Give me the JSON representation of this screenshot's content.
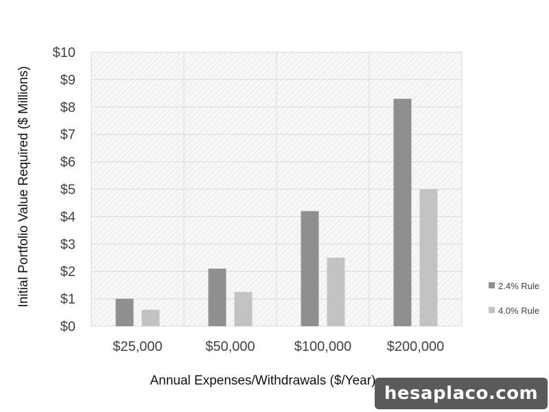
{
  "chart_data": {
    "type": "bar",
    "categories": [
      "$25,000",
      "$50,000",
      "$100,000",
      "$200,000"
    ],
    "series": [
      {
        "name": "2.4% Rule",
        "values": [
          1.0,
          2.1,
          4.2,
          8.3
        ],
        "color": "#8f8f8f"
      },
      {
        "name": "4.0% Rule",
        "values": [
          0.6,
          1.25,
          2.5,
          5.0
        ],
        "color": "#c3c3c3"
      }
    ],
    "y_ticks": [
      "$0",
      "$1",
      "$2",
      "$3",
      "$4",
      "$5",
      "$6",
      "$7",
      "$8",
      "$9",
      "$10"
    ],
    "xlabel": "Annual Expenses/Withdrawals ($/Year)",
    "ylabel": "Initial Portfolio Value Required ($ Millions)",
    "ylim": [
      0,
      10
    ],
    "grid": true,
    "legend_position": "right"
  },
  "watermark": "hesaplaco.com"
}
